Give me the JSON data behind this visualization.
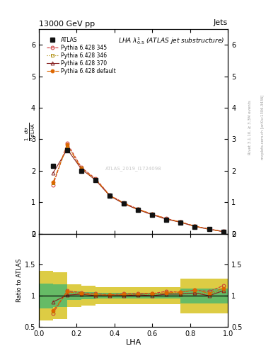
{
  "title": "13000 GeV pp",
  "right_label": "Jets",
  "plot_title": "LHA $\\lambda^1_{0.5}$ (ATLAS jet substructure)",
  "ylabel_main": "$\\frac{1}{\\sigma}\\frac{d\\sigma}{d\\,\\mathrm{LHA}}$",
  "ylabel_ratio": "Ratio to ATLAS",
  "xlabel": "LHA",
  "watermark": "ATLAS_2019_I1724098",
  "rivet_label": "Rivet 3.1.10, ≥ 3.3M events",
  "mcplots_label": "mcplots.cern.ch [arXiv:1306.3436]",
  "atlas_x": [
    0.075,
    0.15,
    0.225,
    0.3,
    0.375,
    0.45,
    0.525,
    0.6,
    0.675,
    0.75,
    0.825,
    0.9,
    0.975
  ],
  "atlas_y": [
    2.15,
    2.65,
    2.0,
    1.7,
    1.2,
    0.95,
    0.75,
    0.6,
    0.45,
    0.35,
    0.22,
    0.14,
    0.06
  ],
  "p345_x": [
    0.075,
    0.15,
    0.225,
    0.3,
    0.375,
    0.45,
    0.525,
    0.6,
    0.675,
    0.75,
    0.825,
    0.9,
    0.975
  ],
  "p345_y": [
    1.55,
    2.87,
    2.1,
    1.75,
    1.22,
    0.98,
    0.78,
    0.62,
    0.48,
    0.37,
    0.24,
    0.15,
    0.07
  ],
  "p346_x": [
    0.075,
    0.15,
    0.225,
    0.3,
    0.375,
    0.45,
    0.525,
    0.6,
    0.675,
    0.75,
    0.825,
    0.9,
    0.975
  ],
  "p346_y": [
    1.62,
    2.78,
    2.08,
    1.73,
    1.21,
    0.96,
    0.77,
    0.61,
    0.47,
    0.36,
    0.23,
    0.145,
    0.065
  ],
  "p370_x": [
    0.075,
    0.15,
    0.225,
    0.3,
    0.375,
    0.45,
    0.525,
    0.6,
    0.675,
    0.75,
    0.825,
    0.9,
    0.975
  ],
  "p370_y": [
    1.93,
    2.68,
    2.05,
    1.7,
    1.2,
    0.95,
    0.76,
    0.6,
    0.46,
    0.36,
    0.23,
    0.14,
    0.065
  ],
  "pdef_x": [
    0.075,
    0.15,
    0.225,
    0.3,
    0.375,
    0.45,
    0.525,
    0.6,
    0.675,
    0.75,
    0.825,
    0.9,
    0.975
  ],
  "pdef_y": [
    1.63,
    2.82,
    2.06,
    1.72,
    1.21,
    0.97,
    0.77,
    0.62,
    0.47,
    0.37,
    0.24,
    0.145,
    0.067
  ],
  "ratio_p345": [
    0.72,
    1.08,
    1.05,
    1.03,
    1.015,
    1.03,
    1.04,
    1.035,
    1.07,
    1.055,
    1.09,
    1.07,
    1.16
  ],
  "ratio_p346": [
    0.75,
    1.05,
    1.04,
    1.02,
    1.01,
    1.01,
    1.027,
    1.02,
    1.045,
    1.03,
    1.045,
    1.035,
    1.08
  ],
  "ratio_p370": [
    0.9,
    1.01,
    1.025,
    1.0,
    1.0,
    1.0,
    1.013,
    1.0,
    1.025,
    1.025,
    1.045,
    1.0,
    1.08
  ],
  "ratio_pdef": [
    0.76,
    1.065,
    1.03,
    1.015,
    1.008,
    1.02,
    1.027,
    1.033,
    1.045,
    1.06,
    1.09,
    1.04,
    1.12
  ],
  "band_edges": [
    0.0,
    0.075,
    0.15,
    0.225,
    0.3,
    0.375,
    0.45,
    0.525,
    0.6,
    0.675,
    0.75,
    0.825,
    0.9,
    0.975,
    1.05
  ],
  "band_green_lo": [
    0.8,
    0.82,
    0.93,
    0.94,
    0.95,
    0.95,
    0.95,
    0.95,
    0.95,
    0.95,
    0.88,
    0.88,
    0.88,
    0.88
  ],
  "band_green_hi": [
    1.2,
    1.18,
    1.07,
    1.06,
    1.05,
    1.05,
    1.05,
    1.05,
    1.05,
    1.05,
    1.12,
    1.12,
    1.12,
    1.12
  ],
  "band_yellow_lo": [
    0.6,
    0.62,
    0.82,
    0.84,
    0.86,
    0.86,
    0.86,
    0.86,
    0.86,
    0.86,
    0.72,
    0.72,
    0.72,
    0.72
  ],
  "band_yellow_hi": [
    1.4,
    1.38,
    1.18,
    1.16,
    1.14,
    1.14,
    1.14,
    1.14,
    1.14,
    1.14,
    1.28,
    1.28,
    1.28,
    1.28
  ],
  "color_345": "#cc3333",
  "color_346": "#aa8800",
  "color_370": "#882222",
  "color_def": "#dd6600",
  "color_atlas": "#111111",
  "color_green": "#66bb66",
  "color_yellow": "#ddcc44",
  "ylim_main": [
    0,
    6.5
  ],
  "ylim_ratio": [
    0.5,
    2.0
  ],
  "xlim": [
    0,
    1.0
  ],
  "yticks_main": [
    0,
    1,
    2,
    3,
    4,
    5,
    6
  ],
  "yticks_ratio": [
    0.5,
    1.0,
    1.5,
    2.0
  ],
  "yticklabels_ratio": [
    "0.5",
    "1",
    "1.5",
    "2"
  ]
}
